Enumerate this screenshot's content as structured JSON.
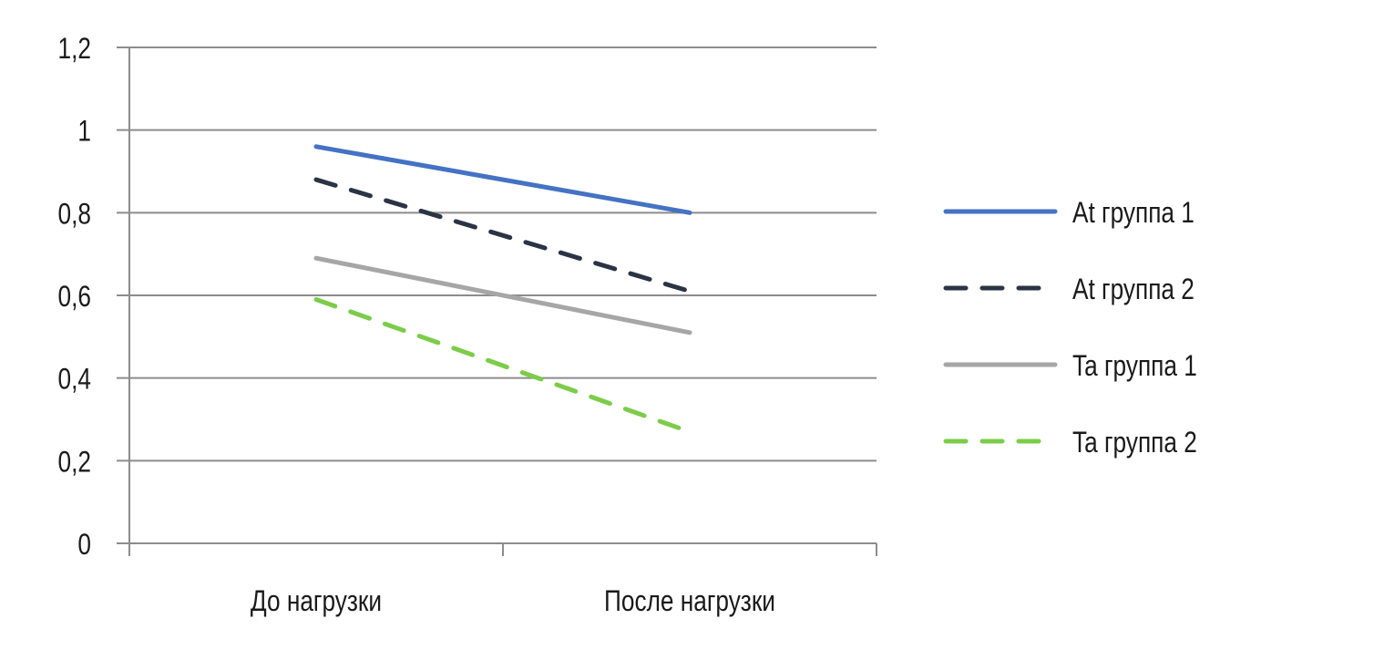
{
  "chart_data": {
    "type": "line",
    "title": "",
    "xlabel": "",
    "ylabel": "",
    "categories": [
      "До нагрузки",
      "После нагрузки"
    ],
    "ylim": [
      0,
      1.2
    ],
    "yticks": [
      "0",
      "0,2",
      "0,4",
      "0,6",
      "0,8",
      "1",
      "1,2"
    ],
    "ytick_values": [
      0,
      0.2,
      0.4,
      0.6,
      0.8,
      1,
      1.2
    ],
    "grid": true,
    "legend_position": "right",
    "series": [
      {
        "name": "At группа 1",
        "values": [
          0.96,
          0.8
        ],
        "color": "#4472c4",
        "dash": "solid"
      },
      {
        "name": "At группа 2",
        "values": [
          0.88,
          0.61
        ],
        "color": "#2b3445",
        "dash": "dashed"
      },
      {
        "name": "Ta группа 1",
        "values": [
          0.69,
          0.51
        ],
        "color": "#a6a6a6",
        "dash": "solid"
      },
      {
        "name": "Ta группа 2",
        "values": [
          0.59,
          0.27
        ],
        "color": "#7ccc4a",
        "dash": "dashed"
      }
    ]
  }
}
